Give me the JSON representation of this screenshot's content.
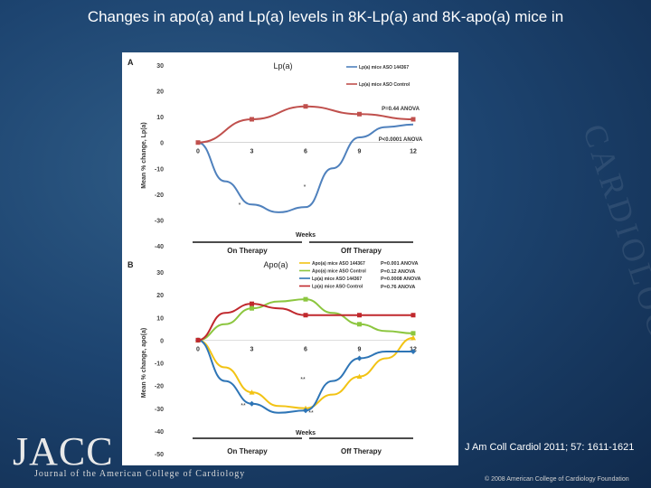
{
  "slide": {
    "title": "Changes in apo(a) and Lp(a) levels in 8K-Lp(a) and 8K-apo(a) mice in",
    "citation": "J Am Coll Cardiol 2011; 57: 1611-1621",
    "logo_text": "JACC",
    "journal_name": "Journal of the American College of Cardiology",
    "copyright": "© 2008 American College of Cardiology Foundation",
    "watermark": "CARDIOLOGY"
  },
  "chart_data": [
    {
      "panel": "A",
      "type": "line",
      "title": "Lp(a)",
      "ylabel": "Mean % change, Lp(a)",
      "xlabel": "Weeks",
      "ylim": [
        -40,
        30
      ],
      "yticks": [
        -40,
        -30,
        -20,
        -10,
        0,
        10,
        20,
        30
      ],
      "x_ticks": [
        0,
        3,
        6,
        9,
        12
      ],
      "phases": [
        {
          "label": "On Therapy",
          "from": 0,
          "to": 6
        },
        {
          "label": "Off Therapy",
          "from": 6,
          "to": 12
        }
      ],
      "legend_position": "top-right",
      "series": [
        {
          "name": "Lp(a) mice ASO 144367",
          "color": "#4f81bd",
          "marker": "none",
          "x": [
            0,
            1.5,
            3,
            4.5,
            6,
            7.5,
            9,
            10.5,
            12
          ],
          "values": [
            0,
            -15,
            -24,
            -27,
            -25,
            -10,
            2,
            6,
            7
          ]
        },
        {
          "name": "Lp(a) mice ASO Control",
          "color": "#c0504d",
          "marker": "square",
          "x": [
            0,
            3,
            6,
            9,
            12
          ],
          "values": [
            0,
            9,
            14,
            11,
            9
          ]
        }
      ],
      "stats": [
        "P=0.44 ANOVA",
        "P<0.0001 ANOVA"
      ],
      "point_marks": [
        "*",
        "*"
      ]
    },
    {
      "panel": "B",
      "type": "line",
      "title": "Apo(a)",
      "ylabel": "Mean % change, apo(a)",
      "xlabel": "Weeks",
      "ylim": [
        -50,
        30
      ],
      "yticks": [
        -50,
        -40,
        -30,
        -20,
        -10,
        0,
        10,
        20,
        30
      ],
      "x_ticks": [
        0,
        3,
        6,
        9,
        12
      ],
      "phases": [
        {
          "label": "On Therapy",
          "from": 0,
          "to": 6
        },
        {
          "label": "Off Therapy",
          "from": 6,
          "to": 12
        }
      ],
      "legend_position": "top-right",
      "series": [
        {
          "name": "Apo(a) mice ASO 144367",
          "color": "#f2c314",
          "marker": "triangle",
          "x": [
            0,
            1.5,
            3,
            4.5,
            6,
            7.5,
            9,
            10.5,
            12
          ],
          "values": [
            0,
            -12,
            -23,
            -29,
            -30,
            -24,
            -16,
            -8,
            1
          ]
        },
        {
          "name": "Apo(a) mice ASO Control",
          "color": "#8cc63f",
          "marker": "square",
          "x": [
            0,
            1.5,
            3,
            4.5,
            6,
            7.5,
            9,
            10.5,
            12
          ],
          "values": [
            0,
            7,
            14,
            17,
            18,
            12,
            7,
            4,
            3
          ]
        },
        {
          "name": "Lp(a) mice ASO 144367",
          "color": "#2e75b6",
          "marker": "diamond",
          "x": [
            0,
            1.5,
            3,
            4.5,
            6,
            7.5,
            9,
            10.5,
            12
          ],
          "values": [
            0,
            -18,
            -28,
            -32,
            -31,
            -18,
            -8,
            -5,
            -5
          ]
        },
        {
          "name": "Lp(a) mice ASO Control",
          "color": "#c0282d",
          "marker": "square",
          "x": [
            0,
            1.5,
            3,
            4.5,
            6,
            7.5,
            9,
            10.5,
            12
          ],
          "values": [
            0,
            12,
            16,
            14,
            11,
            11,
            11,
            11,
            11
          ]
        }
      ],
      "stats": [
        "P=0.001 ANOVA",
        "P=0.12 ANOVA",
        "P=0.0008 ANOVA",
        "P=0.76 ANOVA"
      ],
      "point_marks": [
        "**",
        "**",
        "**"
      ]
    }
  ]
}
